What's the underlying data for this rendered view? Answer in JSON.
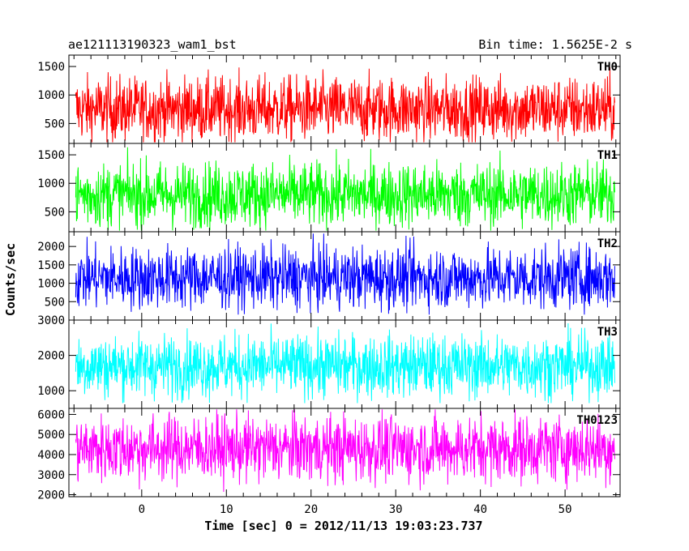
{
  "chart_data": {
    "type": "line",
    "title": "ae121113190323_wam1_bst",
    "bin_time": "Bin time: 1.5625E-2 s",
    "xlabel": "Time [sec] 0 = 2012/11/13 19:03:23.737",
    "ylabel": "Counts/sec",
    "xlim": [
      -8.6,
      56.5
    ],
    "data_x_range": [
      -7.8,
      55.9
    ],
    "x_ticks": [
      0,
      10,
      20,
      30,
      40,
      50
    ],
    "x_tick_labels": [
      "0",
      "10",
      "20",
      "30",
      "40",
      "50"
    ],
    "grid": false,
    "panels": [
      {
        "name": "TH0",
        "color": "#ff0000",
        "ylim": [
          150,
          1700
        ],
        "y_ticks": [
          500,
          1000,
          1500
        ],
        "y_tick_labels": [
          "500",
          "1000",
          "1500"
        ],
        "mean": 750,
        "band": [
          170,
          1650
        ]
      },
      {
        "name": "TH1",
        "color": "#00ff00",
        "ylim": [
          150,
          1700
        ],
        "y_ticks": [
          500,
          1000,
          1500
        ],
        "y_tick_labels": [
          "500",
          "1000",
          "1500"
        ],
        "mean": 800,
        "band": [
          170,
          1650
        ]
      },
      {
        "name": "TH2",
        "color": "#0000ff",
        "ylim": [
          0,
          2400
        ],
        "y_ticks": [
          500,
          1000,
          1500,
          2000
        ],
        "y_tick_labels": [
          "500",
          "1000",
          "1500",
          "2000"
        ],
        "mean": 1150,
        "band": [
          150,
          2350
        ]
      },
      {
        "name": "TH3",
        "color": "#00ffff",
        "ylim": [
          500,
          3000
        ],
        "y_ticks": [
          1000,
          2000,
          3000
        ],
        "y_tick_labels": [
          "1000",
          "2000",
          "3000"
        ],
        "mean": 1700,
        "band": [
          650,
          2950
        ]
      },
      {
        "name": "TH0123",
        "color": "#ff00ff",
        "ylim": [
          1900,
          6300
        ],
        "y_ticks": [
          2000,
          3000,
          4000,
          5000,
          6000
        ],
        "y_tick_labels": [
          "2000",
          "3000",
          "4000",
          "5000",
          "6000"
        ],
        "mean": 4300,
        "band": [
          1950,
          6250
        ]
      }
    ]
  }
}
